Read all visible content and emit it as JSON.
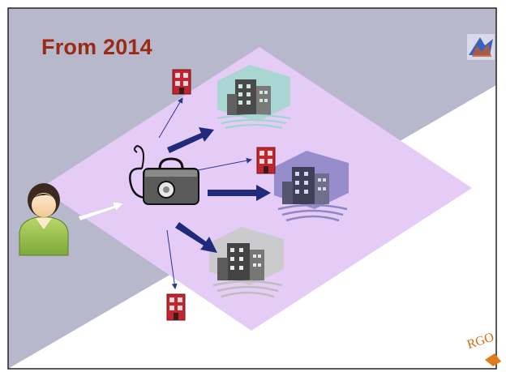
{
  "slide": {
    "title": "From 2014",
    "logo_text": "RGO",
    "colors": {
      "title": "#9b2a12",
      "background_band": "#b8b8cc",
      "diamond": "#e4ccf6",
      "arrow_dark": "#1f2a7a",
      "arrow_light": "#ffffff",
      "logo": "#d96b10"
    }
  },
  "diagram": {
    "nodes": [
      {
        "id": "patient",
        "icon": "person-icon"
      },
      {
        "id": "gp",
        "icon": "stethoscope-bag-icon"
      },
      {
        "id": "hospital-top",
        "icon": "hospital-building-icon",
        "tint": "#9fd6cc"
      },
      {
        "id": "hospital-middle",
        "icon": "hospital-building-icon",
        "tint": "#8e86c8"
      },
      {
        "id": "hospital-bottom",
        "icon": "hospital-building-icon",
        "tint": "#c9c9c9"
      },
      {
        "id": "clinic-top",
        "icon": "small-clinic-icon"
      },
      {
        "id": "clinic-middle",
        "icon": "small-clinic-icon"
      },
      {
        "id": "clinic-bottom",
        "icon": "small-clinic-icon"
      }
    ],
    "edges": [
      {
        "from": "patient",
        "to": "gp",
        "style": "white-arrow"
      },
      {
        "from": "gp",
        "to": "hospital-top",
        "style": "thick-arrow"
      },
      {
        "from": "gp",
        "to": "hospital-middle",
        "style": "thick-arrow"
      },
      {
        "from": "gp",
        "to": "hospital-bottom",
        "style": "thick-arrow"
      },
      {
        "from": "gp",
        "to": "clinic-top",
        "style": "thin-arrow"
      },
      {
        "from": "gp",
        "to": "clinic-middle",
        "style": "thin-arrow"
      },
      {
        "from": "gp",
        "to": "clinic-bottom",
        "style": "thin-arrow"
      }
    ]
  }
}
